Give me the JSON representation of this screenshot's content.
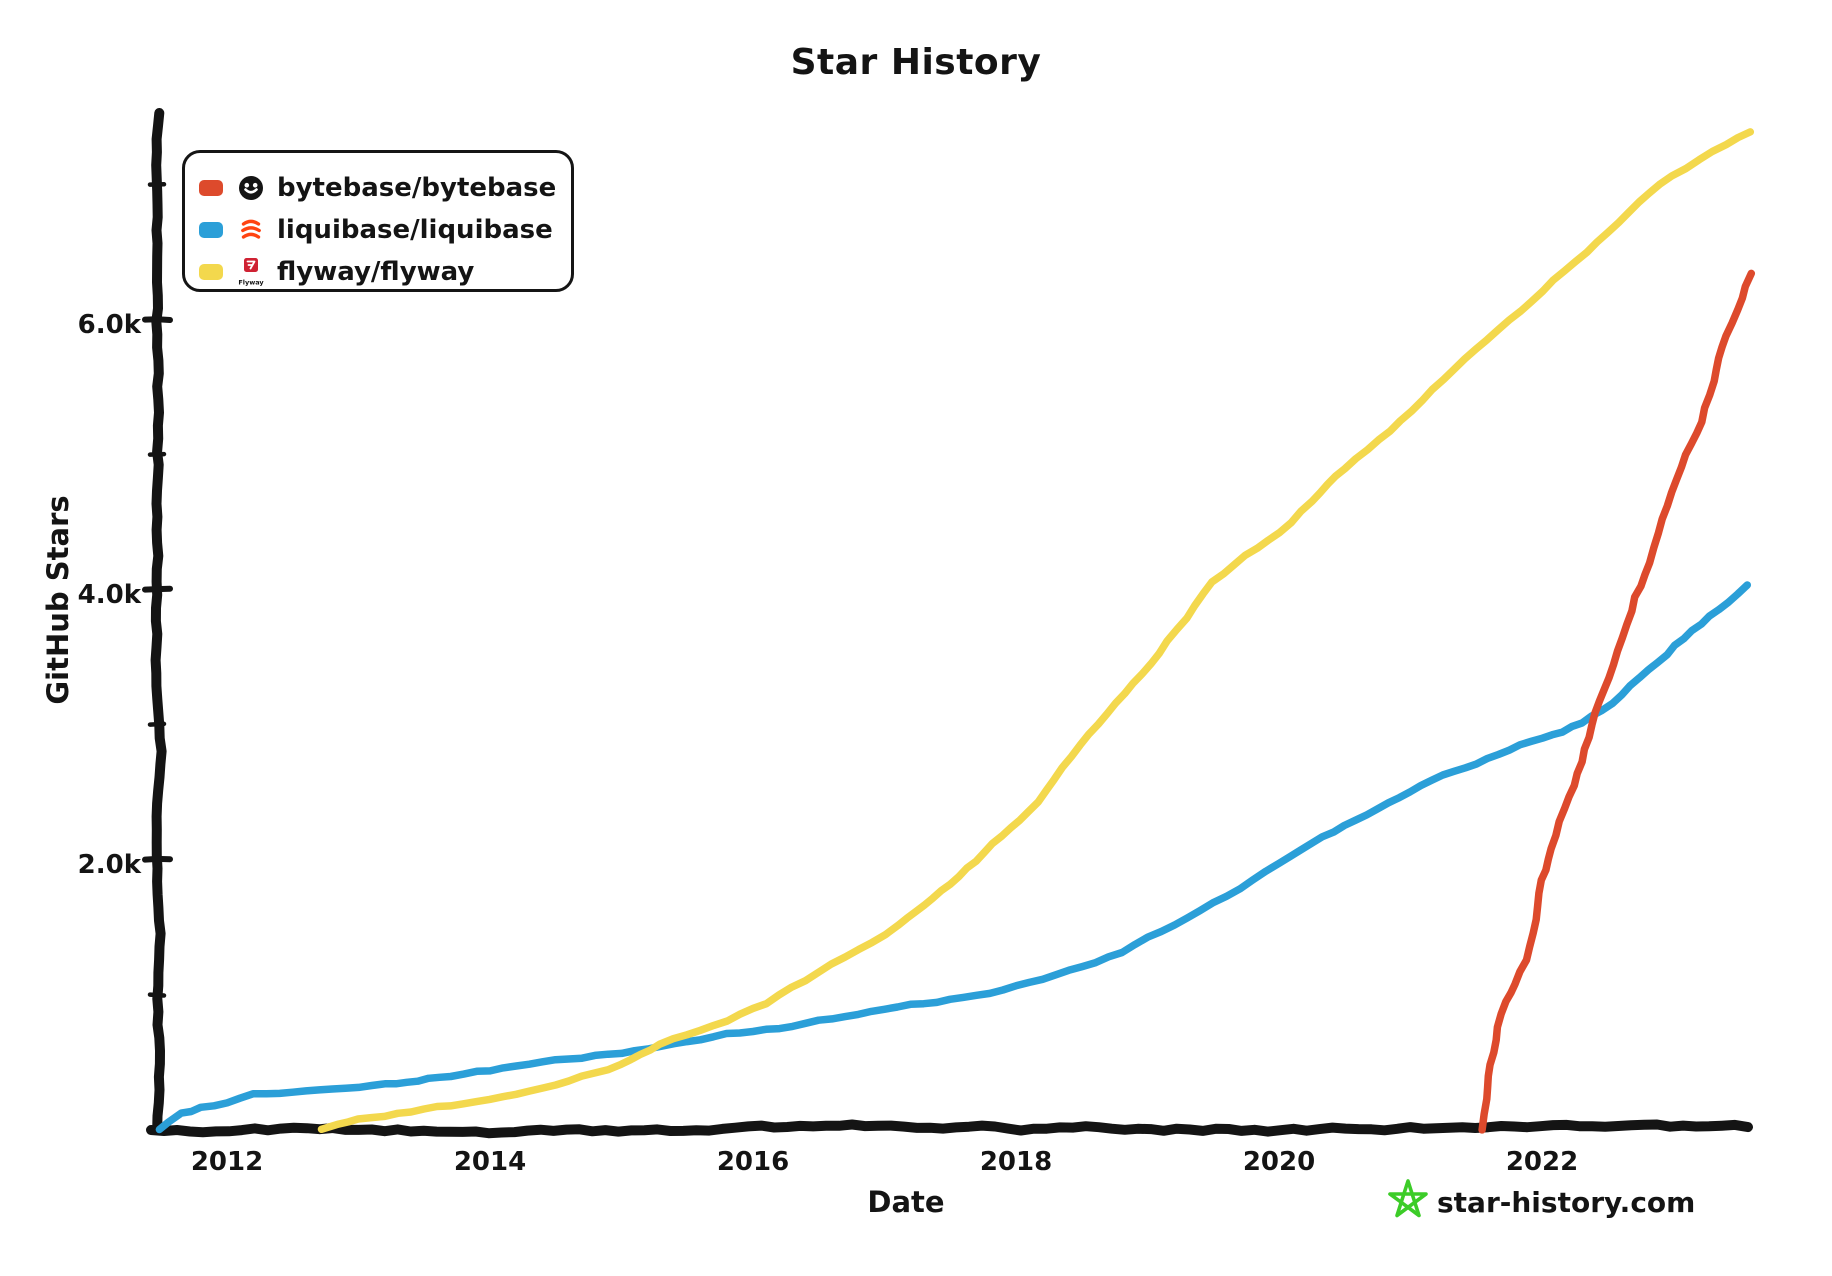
{
  "title": "Star History",
  "legend": {
    "items": [
      {
        "label": "bytebase/bytebase",
        "color": "#dd4a2c",
        "logo": "bytebase-avatar"
      },
      {
        "label": "liquibase/liquibase",
        "color": "#2b9fd8",
        "logo": "liquibase-avatar"
      },
      {
        "label": "flyway/flyway",
        "color": "#f3d84d",
        "logo": "flyway-avatar",
        "logo_text": "Flyway"
      }
    ]
  },
  "axes": {
    "x_label": "Date",
    "y_label": "GitHub Stars",
    "x_ticks": [
      "2012",
      "2014",
      "2016",
      "2018",
      "2020",
      "2022"
    ],
    "y_ticks": [
      "2.0k",
      "4.0k",
      "6.0k"
    ]
  },
  "watermark": {
    "text": "star-history.com",
    "text_color": "#909090",
    "star_color": "#3ccc28"
  },
  "chart_data": {
    "type": "line",
    "title": "Star History",
    "xlabel": "Date",
    "ylabel": "GitHub Stars",
    "x_range": [
      2011.3,
      2023.7
    ],
    "ylim": [
      0,
      7500
    ],
    "grid": false,
    "legend_position": "top-left",
    "x_tick_years": [
      2012,
      2014,
      2016,
      2018,
      2020,
      2022
    ],
    "y_tick_values": [
      2000,
      4000,
      6000
    ],
    "y_tick_minor_values": [
      1000,
      3000,
      5000,
      7000
    ],
    "units": "GitHub stars",
    "series": [
      {
        "name": "liquibase/liquibase",
        "color": "#2b9fd8",
        "seed": 7,
        "points": [
          [
            2011.49,
            0
          ],
          [
            2011.55,
            60
          ],
          [
            2011.65,
            130
          ],
          [
            2011.8,
            170
          ],
          [
            2012.0,
            205
          ],
          [
            2012.2,
            255
          ],
          [
            2012.4,
            280
          ],
          [
            2012.6,
            295
          ],
          [
            2012.8,
            310
          ],
          [
            2013.0,
            330
          ],
          [
            2013.2,
            350
          ],
          [
            2013.45,
            368
          ],
          [
            2013.7,
            405
          ],
          [
            2014.0,
            445
          ],
          [
            2014.3,
            485
          ],
          [
            2014.6,
            515
          ],
          [
            2014.9,
            555
          ],
          [
            2015.2,
            600
          ],
          [
            2015.5,
            650
          ],
          [
            2015.8,
            705
          ],
          [
            2016.1,
            745
          ],
          [
            2016.4,
            790
          ],
          [
            2016.7,
            845
          ],
          [
            2017.0,
            890
          ],
          [
            2017.3,
            925
          ],
          [
            2017.6,
            975
          ],
          [
            2017.9,
            1040
          ],
          [
            2018.2,
            1125
          ],
          [
            2018.5,
            1220
          ],
          [
            2018.8,
            1330
          ],
          [
            2019.0,
            1430
          ],
          [
            2019.2,
            1530
          ],
          [
            2019.4,
            1620
          ],
          [
            2019.6,
            1730
          ],
          [
            2019.8,
            1850
          ],
          [
            2020.0,
            1980
          ],
          [
            2020.25,
            2120
          ],
          [
            2020.5,
            2250
          ],
          [
            2020.75,
            2380
          ],
          [
            2021.0,
            2500
          ],
          [
            2021.25,
            2620
          ],
          [
            2021.5,
            2720
          ],
          [
            2021.75,
            2820
          ],
          [
            2022.0,
            2910
          ],
          [
            2022.15,
            2960
          ],
          [
            2022.3,
            3020
          ],
          [
            2022.45,
            3120
          ],
          [
            2022.6,
            3230
          ],
          [
            2022.8,
            3420
          ],
          [
            2023.0,
            3600
          ],
          [
            2023.2,
            3760
          ],
          [
            2023.4,
            3920
          ],
          [
            2023.55,
            4050
          ]
        ]
      },
      {
        "name": "flyway/flyway",
        "color": "#f3d84d",
        "seed": 11,
        "points": [
          [
            2012.72,
            0
          ],
          [
            2012.85,
            35
          ],
          [
            2013.0,
            65
          ],
          [
            2013.2,
            100
          ],
          [
            2013.4,
            130
          ],
          [
            2013.6,
            160
          ],
          [
            2013.8,
            185
          ],
          [
            2014.0,
            215
          ],
          [
            2014.2,
            260
          ],
          [
            2014.4,
            305
          ],
          [
            2014.6,
            360
          ],
          [
            2014.8,
            420
          ],
          [
            2015.0,
            480
          ],
          [
            2015.15,
            545
          ],
          [
            2015.3,
            620
          ],
          [
            2015.5,
            700
          ],
          [
            2015.7,
            780
          ],
          [
            2015.9,
            860
          ],
          [
            2016.1,
            940
          ],
          [
            2016.3,
            1050
          ],
          [
            2016.5,
            1160
          ],
          [
            2016.7,
            1280
          ],
          [
            2016.9,
            1400
          ],
          [
            2017.1,
            1520
          ],
          [
            2017.3,
            1670
          ],
          [
            2017.5,
            1820
          ],
          [
            2017.7,
            1990
          ],
          [
            2017.9,
            2170
          ],
          [
            2018.1,
            2350
          ],
          [
            2018.3,
            2590
          ],
          [
            2018.5,
            2840
          ],
          [
            2018.7,
            3080
          ],
          [
            2018.9,
            3300
          ],
          [
            2019.1,
            3520
          ],
          [
            2019.3,
            3790
          ],
          [
            2019.5,
            4050
          ],
          [
            2019.75,
            4250
          ],
          [
            2020.0,
            4430
          ],
          [
            2020.25,
            4660
          ],
          [
            2020.5,
            4900
          ],
          [
            2020.75,
            5120
          ],
          [
            2021.0,
            5330
          ],
          [
            2021.25,
            5560
          ],
          [
            2021.5,
            5780
          ],
          [
            2021.75,
            6000
          ],
          [
            2022.0,
            6220
          ],
          [
            2022.25,
            6440
          ],
          [
            2022.5,
            6650
          ],
          [
            2022.75,
            6860
          ],
          [
            2023.0,
            7050
          ],
          [
            2023.2,
            7180
          ],
          [
            2023.4,
            7300
          ],
          [
            2023.58,
            7400
          ]
        ]
      },
      {
        "name": "bytebase/bytebase",
        "color": "#dd4a2c",
        "seed": 13,
        "points": [
          [
            2021.55,
            0
          ],
          [
            2021.58,
            230
          ],
          [
            2021.62,
            480
          ],
          [
            2021.67,
            760
          ],
          [
            2021.73,
            950
          ],
          [
            2021.8,
            1080
          ],
          [
            2021.88,
            1260
          ],
          [
            2021.95,
            1560
          ],
          [
            2022.0,
            1850
          ],
          [
            2022.08,
            2080
          ],
          [
            2022.18,
            2380
          ],
          [
            2022.27,
            2640
          ],
          [
            2022.38,
            3000
          ],
          [
            2022.5,
            3350
          ],
          [
            2022.6,
            3650
          ],
          [
            2022.7,
            3950
          ],
          [
            2022.82,
            4200
          ],
          [
            2022.9,
            4420
          ],
          [
            2023.0,
            4720
          ],
          [
            2023.1,
            5000
          ],
          [
            2023.2,
            5250
          ],
          [
            2023.3,
            5550
          ],
          [
            2023.4,
            5880
          ],
          [
            2023.48,
            6080
          ],
          [
            2023.54,
            6250
          ],
          [
            2023.58,
            6350
          ]
        ]
      }
    ]
  }
}
